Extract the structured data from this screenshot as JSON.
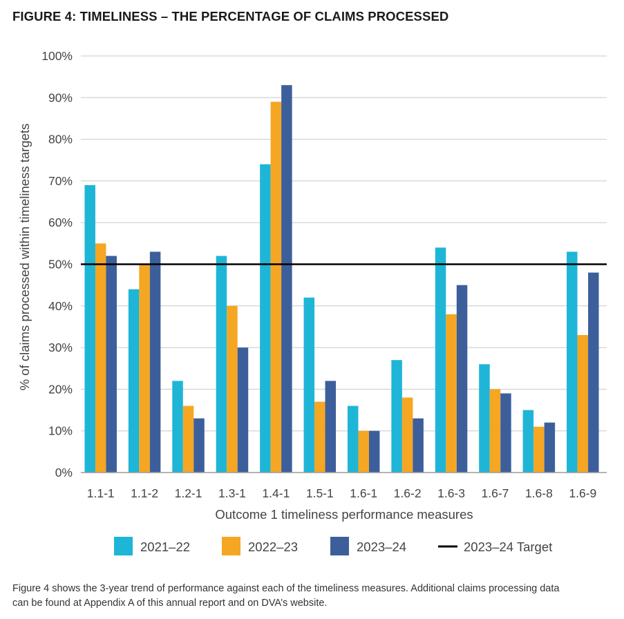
{
  "figure": {
    "title": "FIGURE 4: TIMELINESS – THE PERCENTAGE OF CLAIMS PROCESSED",
    "caption_line1": "Figure 4 shows the 3-year trend of performance against each of the timeliness measures. Additional claims processing data",
    "caption_line2": "can be found at Appendix A of this annual report and on DVA’s website."
  },
  "chart_data": {
    "type": "bar",
    "title": "",
    "xlabel": "Outcome 1 timeliness performance measures",
    "ylabel": "% of claims processed within timeliness targets",
    "ylim": [
      0,
      100
    ],
    "yticks": [
      "0%",
      "10%",
      "20%",
      "30%",
      "40%",
      "50%",
      "60%",
      "70%",
      "80%",
      "90%",
      "100%"
    ],
    "grid": "horizontal",
    "legend_position": "bottom",
    "categories": [
      "1.1-1",
      "1.1-2",
      "1.2-1",
      "1.3-1",
      "1.4-1",
      "1.5-1",
      "1.6-1",
      "1.6-2",
      "1.6-3",
      "1.6-7",
      "1.6-8",
      "1.6-9"
    ],
    "series": [
      {
        "name": "2021–22",
        "color": "#1fb5d6",
        "values": [
          69,
          44,
          22,
          52,
          74,
          42,
          16,
          27,
          54,
          26,
          15,
          53
        ]
      },
      {
        "name": "2022–23",
        "color": "#f5a623",
        "values": [
          55,
          50,
          16,
          40,
          89,
          17,
          10,
          18,
          38,
          20,
          11,
          33
        ]
      },
      {
        "name": "2023–24",
        "color": "#3c5f9c",
        "values": [
          52,
          53,
          13,
          30,
          93,
          22,
          10,
          13,
          45,
          19,
          12,
          48
        ]
      }
    ],
    "target_line": {
      "name": "2023–24 Target",
      "value": 50,
      "color": "#000000"
    }
  }
}
